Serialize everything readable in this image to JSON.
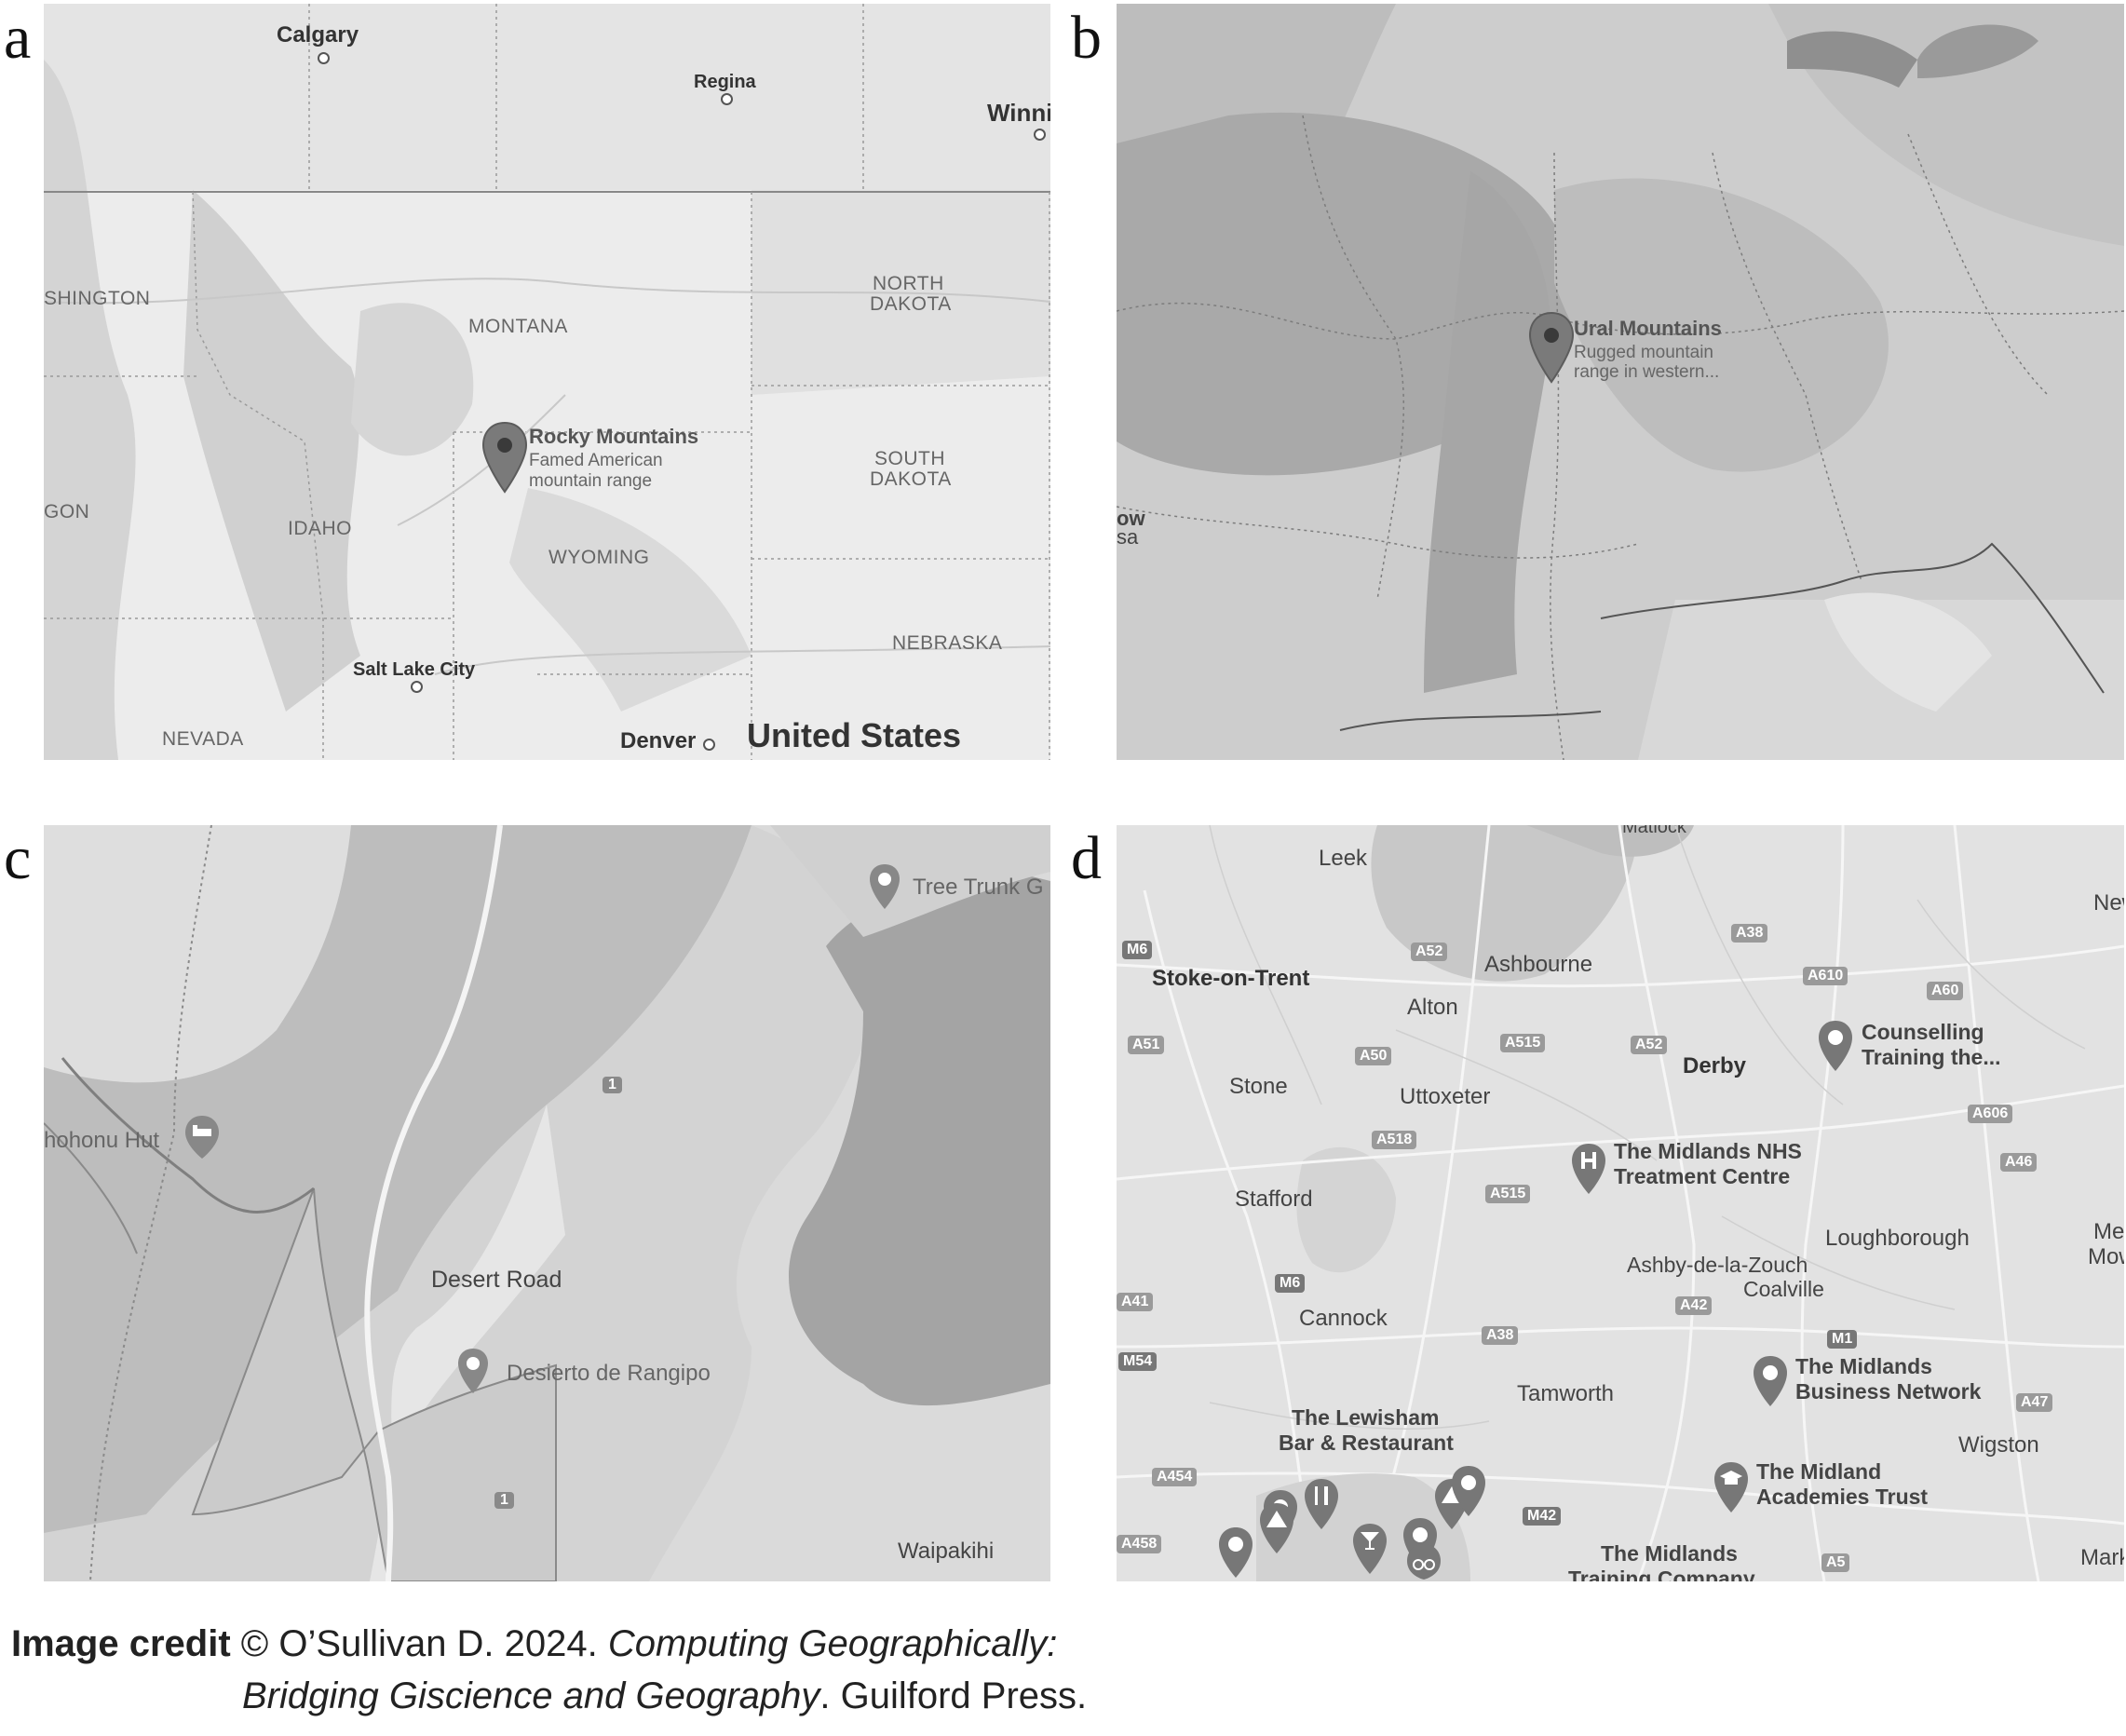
{
  "panels": {
    "a": {
      "letter": "a",
      "cities": {
        "calgary": "Calgary",
        "regina": "Regina",
        "winni": "Winni",
        "salt_lake": "Salt Lake City",
        "denver": "Denver"
      },
      "states": {
        "washington": "SHINGTON",
        "montana": "MONTANA",
        "north_dakota_1": "NORTH",
        "north_dakota_2": "DAKOTA",
        "south_dakota_1": "SOUTH",
        "south_dakota_2": "DAKOTA",
        "oregon": "GON",
        "idaho": "IDAHO",
        "wyoming": "WYOMING",
        "nebraska": "NEBRASKA",
        "nevada": "NEVADA"
      },
      "country": "United States",
      "pin": {
        "title": "Rocky Mountains",
        "sub1": "Famed American",
        "sub2": "mountain range"
      }
    },
    "b": {
      "letter": "b",
      "pin": {
        "title": "Ural Mountains",
        "sub1": "Rugged mountain",
        "sub2": "range in western..."
      },
      "edge_1": "ow",
      "edge_2": "sa"
    },
    "c": {
      "letter": "c",
      "hut": "hohonu Hut",
      "road_label": "Desert Road",
      "poi_desert": "Desierto de Rangipo",
      "poi_tree": "Tree Trunk G",
      "town": "Waipakihi",
      "route_1": "1",
      "route_2": "1"
    },
    "d": {
      "letter": "d",
      "towns": {
        "matlock": "Matlock",
        "leek": "Leek",
        "new": "New",
        "stoke": "Stoke-on-Trent",
        "ashbourne": "Ashbourne",
        "alton": "Alton",
        "derby": "Derby",
        "stone": "Stone",
        "uttoxeter": "Uttoxeter",
        "stafford": "Stafford",
        "loughborough": "Loughborough",
        "melt1": "Melt",
        "melt2": "Mowb",
        "ashby": "Ashby-de-la-Zouch",
        "coalville": "Coalville",
        "cannock": "Cannock",
        "tamworth": "Tamworth",
        "wigston": "Wigston",
        "market": "Market",
        "lewisham1": "The Lewisham",
        "lewisham2": "Bar & Restaurant"
      },
      "roads": {
        "m6a": "M6",
        "a52": "A52",
        "a38a": "A38",
        "a610": "A610",
        "a60": "A60",
        "a51": "A51",
        "a50": "A50",
        "a515a": "A515",
        "a52b": "A52",
        "a606": "A606",
        "a46": "A46",
        "a518": "A518",
        "a515b": "A515",
        "m6b": "M6",
        "a41": "A41",
        "a42": "A42",
        "a38b": "A38",
        "m1": "M1",
        "m54": "M54",
        "a47": "A47",
        "a454": "A454",
        "m42": "M42",
        "a458": "A458",
        "a5": "A5"
      },
      "pois": {
        "counselling1": "Counselling",
        "counselling2": "Training the...",
        "nhs1": "The Midlands NHS",
        "nhs2": "Treatment Centre",
        "business1": "The Midlands",
        "business2": "Business Network",
        "academies1": "The Midland",
        "academies2": "Academies Trust",
        "training1": "The Midlands",
        "training2": "Training Company"
      }
    }
  },
  "credit": {
    "bold": "Image credit",
    "text1": " © O’Sullivan D. 2024. ",
    "italic1": "Computing Geographically:",
    "italic2": "Bridging Giscience and Geography",
    "text2": ". Guilford Press."
  }
}
